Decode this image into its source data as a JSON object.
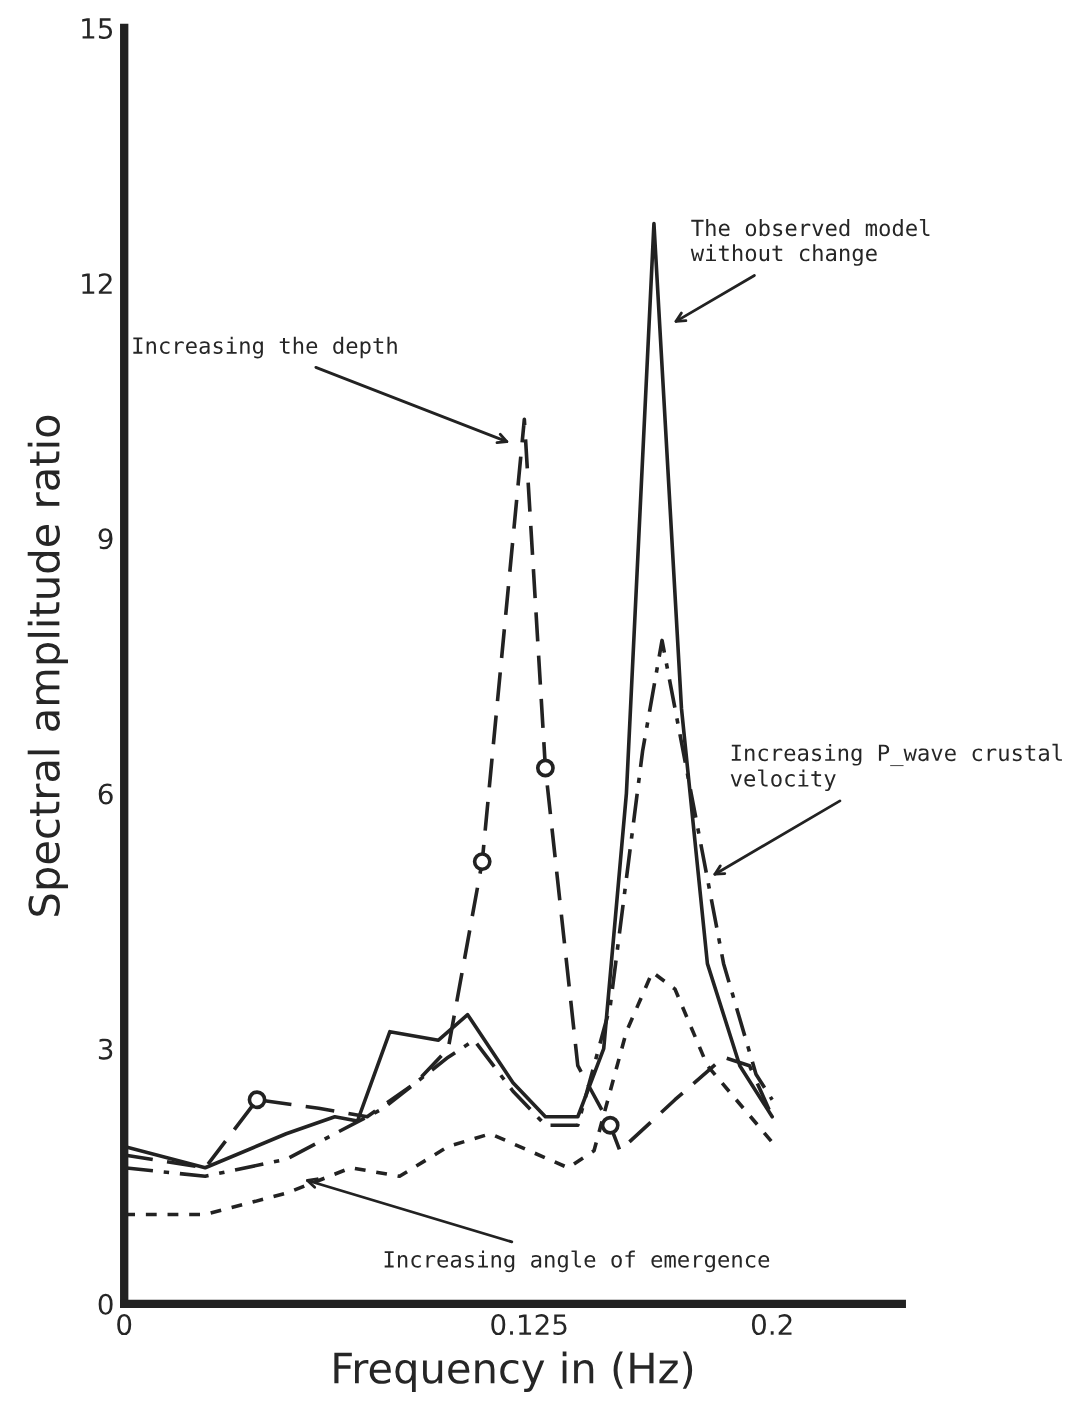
{
  "chart_data": {
    "type": "line",
    "xlabel": "Frequency in (Hz)",
    "ylabel": "Spectral amplitude ratio",
    "xlim": [
      0,
      0.24
    ],
    "xticks": [
      0,
      0.125,
      0.2
    ],
    "ylim": [
      0,
      15
    ],
    "yticks": [
      0,
      3,
      6,
      9,
      12,
      15
    ],
    "grid": false,
    "legend": false,
    "series": [
      {
        "color": "#222222",
        "line_style": "solid",
        "x": [
          0,
          0.025,
          0.05,
          0.065,
          0.072,
          0.082,
          0.097,
          0.106,
          0.12,
          0.13,
          0.14,
          0.148,
          0.155,
          0.1635,
          0.172,
          0.18,
          0.19,
          0.2
        ],
        "values": [
          1.85,
          1.6,
          2.0,
          2.2,
          2.15,
          3.2,
          3.1,
          3.4,
          2.6,
          2.2,
          2.2,
          3.0,
          6.0,
          12.7,
          7.0,
          4.0,
          2.8,
          2.2
        ]
      },
      {
        "color": "#222222",
        "line_style": "dashed",
        "x": [
          0,
          0.025,
          0.041,
          0.06,
          0.075,
          0.09,
          0.1,
          0.1105,
          0.1235,
          0.13,
          0.14,
          0.15,
          0.153,
          0.17,
          0.185,
          0.193,
          0.2
        ],
        "values": [
          1.75,
          1.6,
          2.4,
          2.3,
          2.2,
          2.6,
          3.0,
          5.2,
          10.4,
          6.3,
          2.8,
          2.1,
          1.8,
          2.4,
          2.9,
          2.8,
          2.2
        ]
      },
      {
        "color": "#222222",
        "line_style": "dashdot",
        "x": [
          0,
          0.025,
          0.05,
          0.08,
          0.1,
          0.108,
          0.12,
          0.13,
          0.14,
          0.15,
          0.16,
          0.166,
          0.175,
          0.185,
          0.195,
          0.2
        ],
        "values": [
          1.6,
          1.5,
          1.7,
          2.3,
          2.9,
          3.1,
          2.5,
          2.1,
          2.1,
          3.5,
          6.5,
          7.8,
          6.0,
          4.0,
          2.7,
          2.4
        ]
      },
      {
        "color": "#222222",
        "line_style": "dotted",
        "x": [
          0,
          0.025,
          0.05,
          0.07,
          0.085,
          0.1,
          0.113,
          0.125,
          0.137,
          0.145,
          0.155,
          0.163,
          0.17,
          0.18,
          0.2
        ],
        "values": [
          1.05,
          1.05,
          1.3,
          1.6,
          1.5,
          1.85,
          2.0,
          1.8,
          1.6,
          1.8,
          3.2,
          3.9,
          3.7,
          2.8,
          1.9
        ]
      },
      {
        "type": "scatter",
        "color": "#222222",
        "marker": "circle",
        "x": [
          0.041,
          0.1105,
          0.13,
          0.15
        ],
        "values": [
          2.4,
          5.2,
          6.3,
          2.1
        ]
      }
    ],
    "annotations": [
      {
        "text": "Increasing the depth",
        "x": 0.1206,
        "y": 10.1
      },
      {
        "text": "The observed model\nwithout change",
        "x": 0.168,
        "y": 11.5
      },
      {
        "text": "Increasing P_wave crustal\nvelocity",
        "x": 0.18,
        "y": 5.0
      },
      {
        "text": "Increasing angle of emergence",
        "x": 0.054,
        "y": 1.48
      }
    ]
  }
}
